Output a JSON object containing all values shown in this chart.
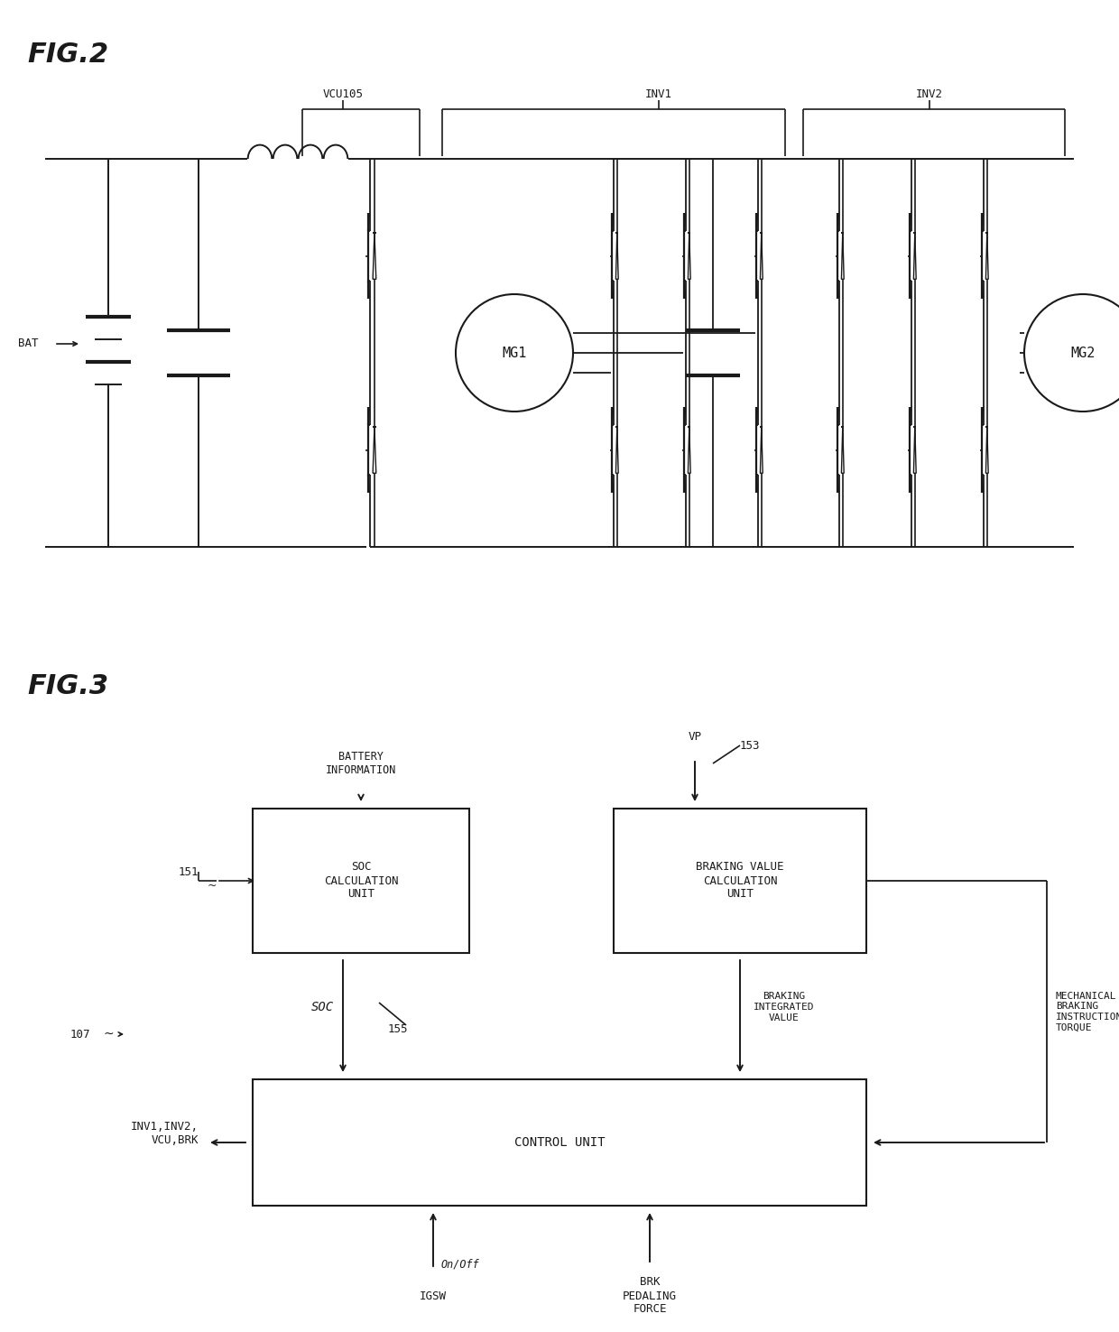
{
  "fig_title_2": "FIG.2",
  "fig_title_3": "FIG.3",
  "background_color": "#ffffff",
  "line_color": "#1a1a1a",
  "text_color": "#1a1a1a",
  "fig2_labels": {
    "vcu": "VCU105",
    "inv1": "INV1",
    "inv2": "INV2",
    "bat": "BAT",
    "mg1": "MG1",
    "mg2": "MG2"
  },
  "fig3_labels": {
    "battery_info": "BATTERY\nINFORMATION",
    "vp": "VP",
    "ref153": "153",
    "ref151": "151",
    "ref107": "107",
    "ref155": "155",
    "soc_unit": "SOC\nCALCULATION\nUNIT",
    "braking_unit": "BRAKING VALUE\nCALCULATION\nUNIT",
    "control_unit": "CONTROL UNIT",
    "soc_label": "SOC",
    "braking_integrated": "BRAKING\nINTEGRATED\nVALUE",
    "mech_braking": "MECHANICAL\nBRAKING\nINSTRUCTION\nTORQUE",
    "inv1inv2": "INV1,INV2,\nVCU,BRK",
    "on_off": "On/Off",
    "igsw": "IGSW",
    "brk_pedal": "BRK\nPEDALING\nFORCE"
  }
}
